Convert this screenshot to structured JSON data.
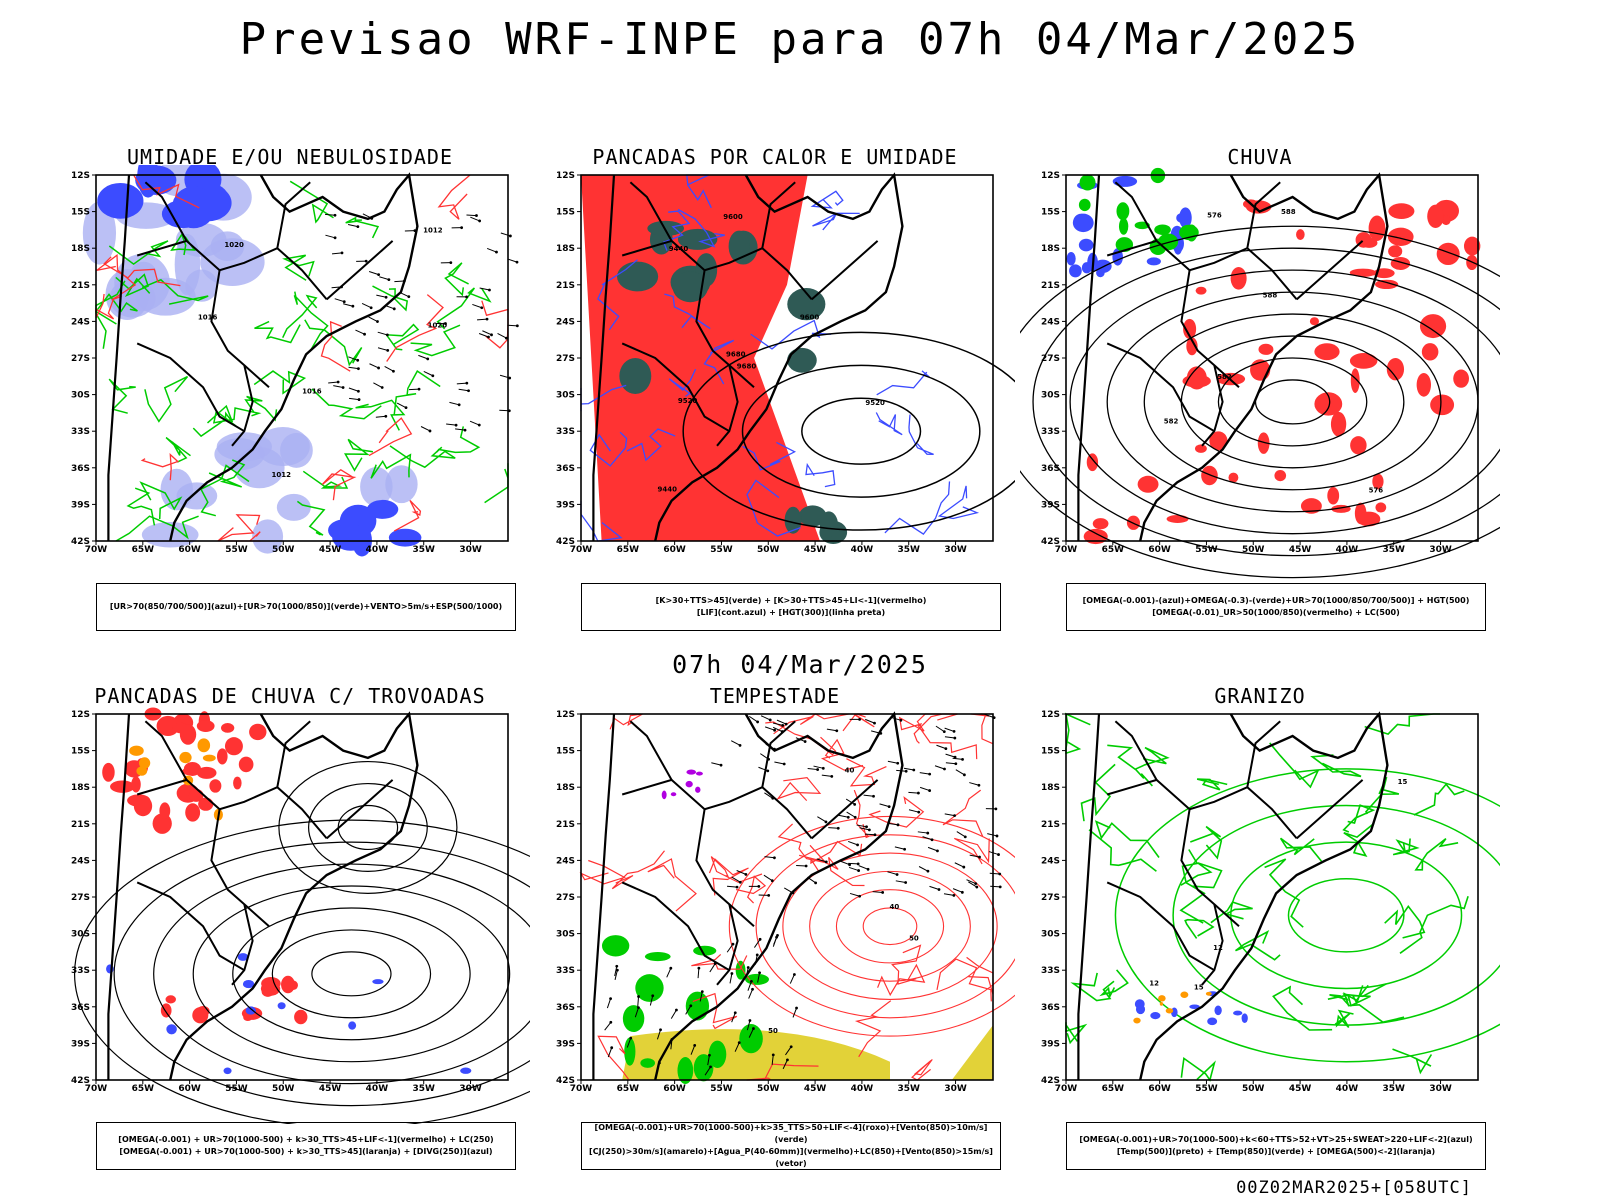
{
  "title": "Previsao WRF-INPE  para 07h 04/Mar/2025",
  "mid_title": "07h 04/Mar/2025",
  "footer": "00Z02MAR2025+[058UTC]",
  "axes": {
    "lat_ticks": [
      "12S",
      "15S",
      "18S",
      "21S",
      "24S",
      "27S",
      "30S",
      "33S",
      "36S",
      "39S",
      "42S"
    ],
    "lon_ticks": [
      "70W",
      "65W",
      "60W",
      "55W",
      "50W",
      "45W",
      "40W",
      "35W",
      "30W"
    ]
  },
  "colors": {
    "blue": "#3c4cff",
    "light_blue": "#aab0f2",
    "green": "#00cc00",
    "red": "#ff3333",
    "dark_teal": "#2f5a55",
    "yellow": "#e2d238",
    "orange": "#ff9900",
    "purple": "#b000e0"
  },
  "panels": [
    {
      "title": "UMIDADE E/OU NEBULOSIDADE",
      "legend": [
        "[UR>70(850/700/500)](azul)+[UR>70(1000/850)](verde)+VENTO>5m/s+ESP(500/1000)"
      ],
      "contour_labels": [
        "1012",
        "1016",
        "1020"
      ]
    },
    {
      "title": "PANCADAS POR CALOR E UMIDADE",
      "legend": [
        "[K>30+TTS>45](verde)  +  [K>30+TTS>45+LI<-1](vermelho)",
        "[LIF](cont.azul)  +  [HGT(300)](linha preta)"
      ],
      "contour_labels": [
        "9600",
        "9520",
        "9440",
        "9680"
      ]
    },
    {
      "title": "CHUVA",
      "legend": [
        "[OMEGA(-0.001)-(azul)+OMEGA(-0.3)-(verde)+UR>70(1000/850/700/500)]  +  HGT(500)",
        "[OMEGA(-0.01)_UR>50(1000/850)(vermelho)  +  LC(500)"
      ],
      "contour_labels": [
        "582",
        "588",
        "576"
      ]
    },
    {
      "title": "PANCADAS DE CHUVA C/ TROVOADAS",
      "legend": [
        "[OMEGA(-0.001)  +  UR>70(1000-500)  +  k>30_TTS>45+LIF<-1](vermelho)  +  LC(250)",
        "[OMEGA(-0.001)  +  UR>70(1000-500)  +  k>30_TTS>45](laranja)  +  [DIVG(250)](azul)"
      ],
      "contour_labels": []
    },
    {
      "title": "TEMPESTADE",
      "legend": [
        "[OMEGA(-0.001)+UR>70(1000-500)+k>35_TTS>50+LIF<-4](roxo)+[Vento(850)>10m/s](verde)",
        "[CJ(250)>30m/s](amarelo)+[Agua_P(40-60mm)](vermelho)+LC(850)+[Vento(850)>15m/s](vetor)"
      ],
      "contour_labels": [
        "40",
        "50"
      ]
    },
    {
      "title": "GRANIZO",
      "legend": [
        "[OMEGA(-0.001)+UR>70(1000-500)+k<60+TTS>52+VT>25+SWEAT>220+LIF<-2](azul)",
        "[Temp(500)](preto)  +  [Temp(850)](verde)  +  [OMEGA(500)<-2](laranja)"
      ],
      "contour_labels": [
        "12",
        "15"
      ]
    }
  ]
}
